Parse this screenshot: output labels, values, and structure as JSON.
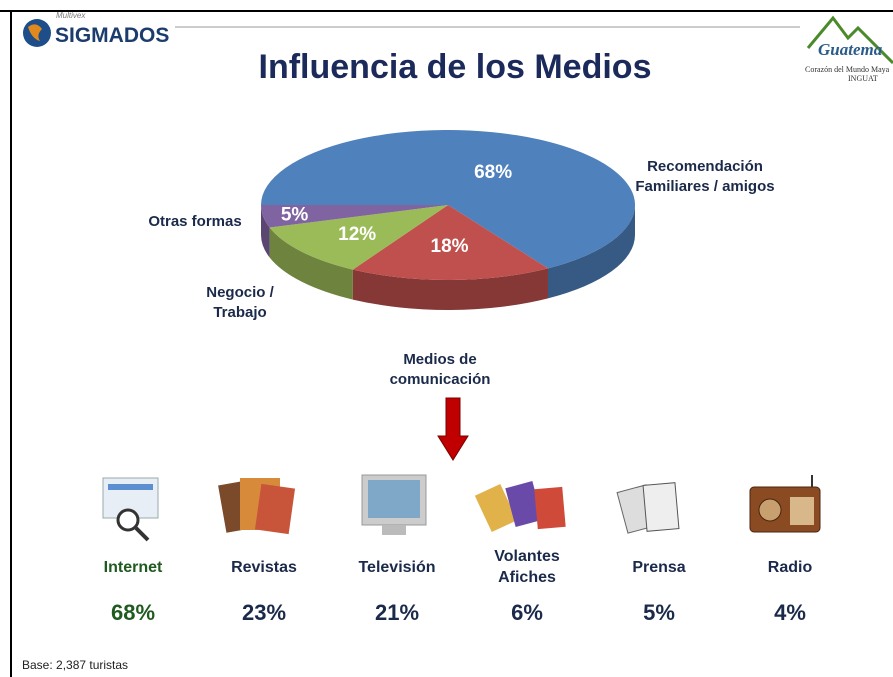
{
  "header": {
    "brand_small": "Multivex",
    "brand": "SIGMADOS",
    "logo_title": "Guatema",
    "logo_subtitle": "Corazón del Mundo Maya",
    "logo_org": "INGUAT"
  },
  "chart_data": {
    "type": "pie",
    "title": "Influencia de los Medios",
    "categories": [
      "Recomendación Familiares / amigos",
      "Medios de comunicación",
      "Negocio / Trabajo",
      "Otras formas"
    ],
    "values": [
      68,
      18,
      12,
      5
    ],
    "value_labels": [
      "68%",
      "18%",
      "12%",
      "5%"
    ],
    "colors": [
      "#4f81bd",
      "#c0504d",
      "#9bbb59",
      "#8064a2"
    ]
  },
  "media": {
    "labels": [
      "Internet",
      "Revistas",
      "Televisión",
      "Volantes Afiches",
      "Prensa",
      "Radio"
    ],
    "values": [
      "68%",
      "23%",
      "21%",
      "6%",
      "5%",
      "4%"
    ]
  },
  "footer": {
    "base": "Base: 2,387 turistas"
  }
}
